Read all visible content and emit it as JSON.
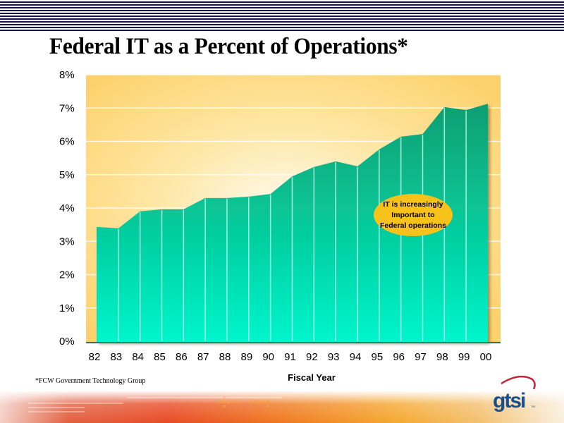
{
  "slide": {
    "title": "Federal IT as a Percent of Operations*",
    "source_note": "*FCW Government Technology Group",
    "logo_text": "gtsi",
    "logo_tm": "TM"
  },
  "colors": {
    "stripe": "#14144a",
    "plot_bg_warm": "#fdd26e",
    "plot_bg_light": "#fff8e6",
    "area_top": "#0a9e72",
    "area_bottom": "#00f5cc",
    "annotation_fill": "#f7c21a",
    "logo": "#1a4f8a",
    "logo_swoosh": "#c0283a"
  },
  "chart_data": {
    "type": "area",
    "title": "Federal IT as a Percent of Operations*",
    "xlabel": "Fiscal Year",
    "ylabel": "",
    "categories": [
      "82",
      "83",
      "84",
      "85",
      "86",
      "87",
      "88",
      "89",
      "90",
      "91",
      "92",
      "93",
      "94",
      "95",
      "96",
      "97",
      "98",
      "99",
      "00"
    ],
    "series": [
      {
        "name": "Federal IT as % of Operations",
        "values": [
          3.43,
          3.39,
          3.9,
          3.96,
          3.96,
          4.3,
          4.3,
          4.34,
          4.42,
          4.95,
          5.23,
          5.4,
          5.25,
          5.76,
          6.14,
          6.22,
          7.03,
          6.94,
          7.13
        ]
      }
    ],
    "ylim": [
      0,
      8
    ],
    "yticks": [
      0,
      1,
      2,
      3,
      4,
      5,
      6,
      7,
      8
    ],
    "ytick_labels": [
      "0%",
      "1%",
      "2%",
      "3%",
      "4%",
      "5%",
      "6%",
      "7%",
      "8%"
    ],
    "grid": true,
    "legend": "none",
    "annotations": [
      {
        "lines": [
          "IT is increasingly",
          "Important to",
          "Federal operations"
        ],
        "near_x": "96",
        "near_y": 4.0
      }
    ]
  }
}
